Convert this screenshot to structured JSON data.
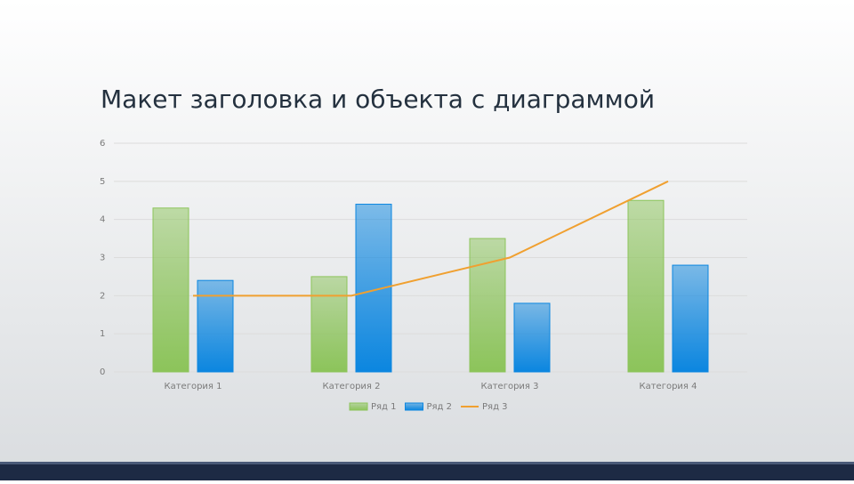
{
  "chart_data": {
    "type": "bar",
    "title": "Макет заголовка и объекта с диаграммой",
    "categories": [
      "Категория 1",
      "Категория 2",
      "Категория 3",
      "Категория 4"
    ],
    "series": [
      {
        "name": "Ряд 1",
        "color": "#8cc45a",
        "values": [
          4.3,
          2.5,
          3.5,
          4.5
        ]
      },
      {
        "name": "Ряд 2",
        "color": "#0b86e0",
        "values": [
          2.4,
          4.4,
          1.8,
          2.8
        ]
      },
      {
        "name": "Ряд 3",
        "type": "line",
        "color": "#f0a030",
        "values": [
          2,
          2,
          3,
          5
        ]
      }
    ],
    "ylim": [
      0,
      6
    ],
    "yticks": [
      0,
      1,
      2,
      3,
      4,
      5,
      6
    ],
    "grid": true,
    "legend": "bottom"
  }
}
